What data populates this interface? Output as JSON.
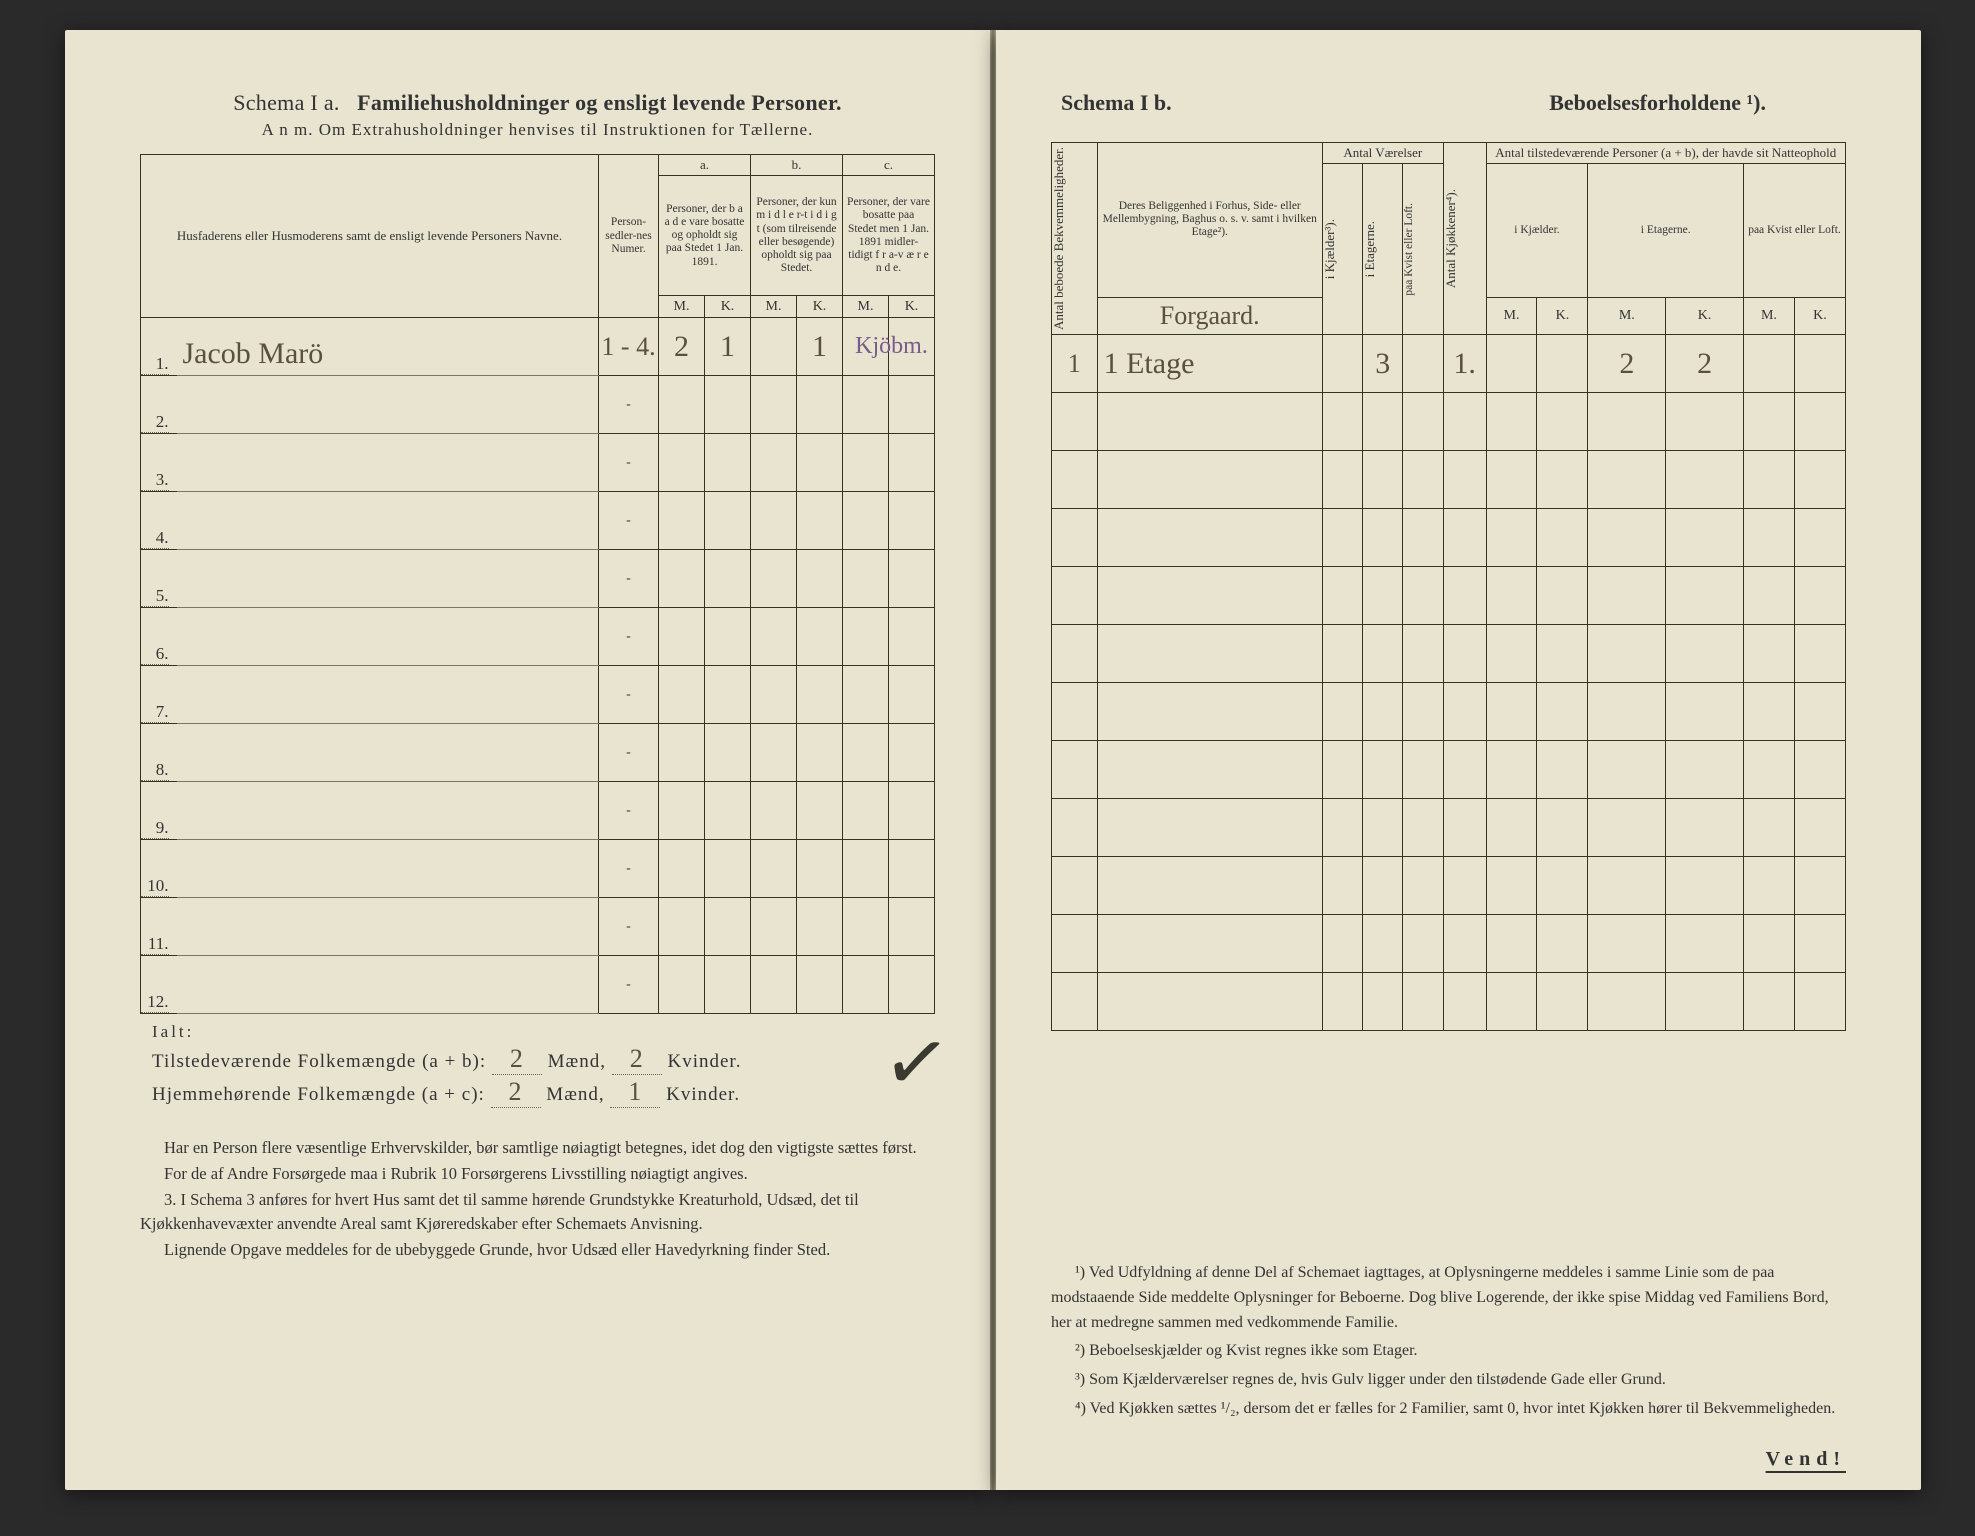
{
  "colors": {
    "paper": "#e8e4d0",
    "ink": "#333333",
    "rule": "#332200",
    "hand_ink": "#5b5040",
    "hand_purple": "#7a5a8a",
    "background": "#1a1a1a"
  },
  "left": {
    "title_a": "Schema I a.",
    "title_b": "Familiehusholdninger og ensligt levende Personer.",
    "subtitle": "A n m.  Om Extrahusholdninger henvises til Instruktionen for Tællerne.",
    "headers": {
      "col1": "Husfaderens eller Husmoderens samt de ensligt levende Personers Navne.",
      "col2": "Person-sedler-nes Numer.",
      "group_a_label": "a.",
      "group_a": "Personer, der b a a d e vare bosatte og opholdt sig paa Stedet 1 Jan. 1891.",
      "group_b_label": "b.",
      "group_b": "Personer, der kun m i d l e r-t i d i g t (som tilreisende eller besøgende) opholdt sig paa Stedet.",
      "group_c_label": "c.",
      "group_c": "Personer, der vare bosatte paa Stedet men 1 Jan. 1891 midler-tidigt f r a-v æ r e n d e.",
      "M": "M.",
      "K": "K."
    },
    "rows": [
      {
        "n": "1.",
        "name": "Jacob Marö",
        "numer": "1 - 4.",
        "aM": "2",
        "aK": "1",
        "bM": "",
        "bK": "1",
        "cM": "",
        "cK": "",
        "extra": "Kjöbm."
      },
      {
        "n": "2."
      },
      {
        "n": "3."
      },
      {
        "n": "4."
      },
      {
        "n": "5."
      },
      {
        "n": "6."
      },
      {
        "n": "7."
      },
      {
        "n": "8."
      },
      {
        "n": "9."
      },
      {
        "n": "10."
      },
      {
        "n": "11."
      },
      {
        "n": "12."
      }
    ],
    "ialt": "Ialt:",
    "tot1_label_a": "Tilstedeværende Folkemængde (a + b): ",
    "tot1_m": "2",
    "tot1_mid": " Mænd, ",
    "tot1_k": "2",
    "tot1_end": " Kvinder.",
    "tot2_label_a": "Hjemmehørende Folkemængde (a + c): ",
    "tot2_m": "2",
    "tot2_mid": " Mænd, ",
    "tot2_k": "1",
    "tot2_end": " Kvinder.",
    "foot_p1": "Har en Person flere væsentlige Erhvervskilder, bør samtlige nøiagtigt betegnes, idet dog den vigtigste sættes først.",
    "foot_p2": "For de af Andre Forsørgede maa i Rubrik 10 Forsørgerens Livsstilling nøiagtigt angives.",
    "foot_p3_lead": "3.",
    "foot_p3": "I Schema 3 anføres for hvert Hus samt det til samme hørende Grundstykke Kreaturhold, Udsæd, det til Kjøkkenhavevæxter anvendte Areal samt Kjøreredskaber efter Schemaets Anvisning.",
    "foot_p4": "Lignende Opgave meddeles for de ubebyggede Grunde, hvor Udsæd eller Havedyrkning finder Sted."
  },
  "right": {
    "title_a": "Schema I b.",
    "title_b": "Beboelsesforholdene ¹).",
    "headers": {
      "col0": "Antal beboede Bekvemmeligheder.",
      "col1_top": "Deres Beliggenhed i Forhus, Side- eller Mellembygning, Baghus o. s. v. samt i hvilken Etage²).",
      "col1_hand": "Forgaard.",
      "grp_vaer": "Antal Værelser",
      "v1": "i Kjælder³).",
      "v2": "i Etagerne.",
      "v3": "paa Kvist eller Loft.",
      "kjok": "Antal Kjøkkener⁴).",
      "grp_pers": "Antal tilstedeværende Personer (a + b), der havde sit Natteophold",
      "p1": "i Kjælder.",
      "p2": "i Etagerne.",
      "p3": "paa Kvist eller Loft.",
      "M": "M.",
      "K": "K."
    },
    "rows": [
      {
        "a": "1",
        "loc": "1 Etage",
        "v1": "",
        "v2": "3",
        "v3": "",
        "kj": "1.",
        "p1m": "",
        "p1k": "",
        "p2m": "2",
        "p2k": "2",
        "p3m": "",
        "p3k": ""
      },
      {},
      {},
      {},
      {},
      {},
      {},
      {},
      {},
      {},
      {},
      {}
    ],
    "note1": "¹) Ved Udfyldning af denne Del af Schemaet iagttages, at Oplysningerne meddeles i samme Linie som de paa modstaaende Side meddelte Oplysninger for Beboerne. Dog blive Logerende, der ikke spise Middag ved Familiens Bord, her at medregne sammen med vedkommende Familie.",
    "note2": "²) Beboelseskjælder og Kvist regnes ikke som Etager.",
    "note3": "³) Som Kjælderværelser regnes de, hvis Gulv ligger under den tilstødende Gade eller Grund.",
    "note4": "⁴) Ved Kjøkken sættes ¹/₂, dersom det er fælles for 2 Familier, samt 0, hvor intet Kjøkken hører til Bekvemmeligheden.",
    "vend": "Vend!"
  }
}
